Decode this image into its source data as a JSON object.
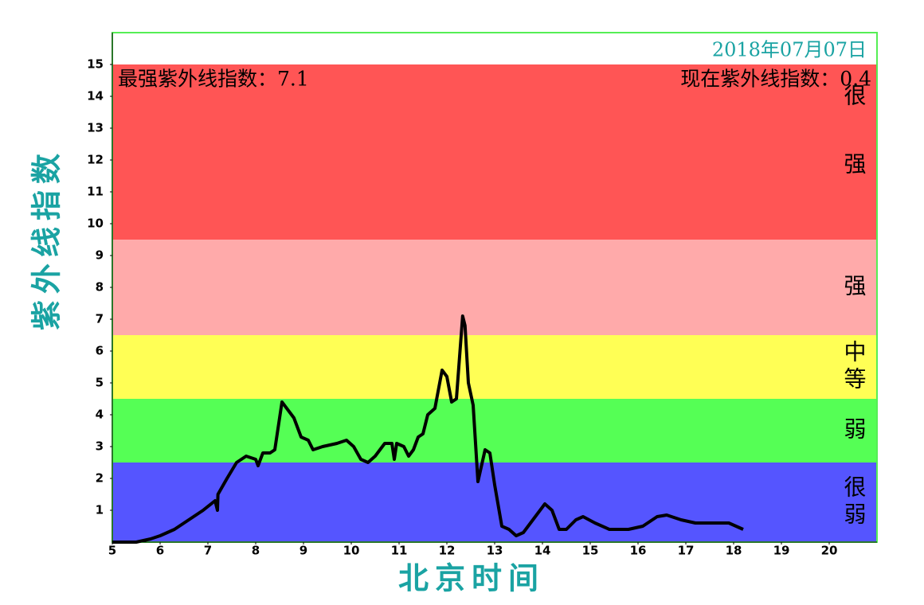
{
  "chart_data": {
    "type": "line",
    "date": "2018年07月07日",
    "max_text": "最强紫外线指数：7.1",
    "now_text": "现在紫外线指数：0.4",
    "ylabel": "紫外线指数",
    "xlabel": "北京时间",
    "xlim": [
      5,
      21
    ],
    "ylim": [
      0,
      16
    ],
    "xticks": [
      5,
      6,
      7,
      8,
      9,
      10,
      11,
      12,
      13,
      14,
      15,
      16,
      17,
      18,
      19,
      20
    ],
    "yticks": [
      1,
      2,
      3,
      4,
      5,
      6,
      7,
      8,
      9,
      10,
      11,
      12,
      13,
      14,
      15
    ],
    "bands": [
      {
        "from": 0,
        "to": 2.5,
        "color": "#5555ff",
        "label": "很弱"
      },
      {
        "from": 2.5,
        "to": 4.5,
        "color": "#55ff55",
        "label": "弱"
      },
      {
        "from": 4.5,
        "to": 6.5,
        "color": "#ffff55",
        "label": "中等"
      },
      {
        "from": 6.5,
        "to": 9.5,
        "color": "#ffaaaa",
        "label": "强"
      },
      {
        "from": 9.5,
        "to": 15,
        "color": "#ff5555",
        "label": "很强"
      }
    ],
    "x": [
      5,
      5.5,
      5.8,
      6,
      6.3,
      6.6,
      6.9,
      7.15,
      7.2,
      7.21,
      7.4,
      7.6,
      7.8,
      8.0,
      8.05,
      8.15,
      8.3,
      8.4,
      8.55,
      8.7,
      8.8,
      8.95,
      9.1,
      9.2,
      9.4,
      9.7,
      9.9,
      10.05,
      10.2,
      10.35,
      10.5,
      10.7,
      10.85,
      10.9,
      10.95,
      11.1,
      11.2,
      11.3,
      11.4,
      11.5,
      11.6,
      11.75,
      11.9,
      12.0,
      12.1,
      12.2,
      12.33,
      12.38,
      12.45,
      12.55,
      12.65,
      12.8,
      12.9,
      13.0,
      13.15,
      13.3,
      13.45,
      13.6,
      13.8,
      14.05,
      14.2,
      14.35,
      14.5,
      14.7,
      14.85,
      15.1,
      15.4,
      15.8,
      16.1,
      16.4,
      16.6,
      16.9,
      17.2,
      17.6,
      17.9,
      18.2
    ],
    "series": [
      {
        "color": "#000000",
        "values": [
          0,
          0,
          0.1,
          0.2,
          0.4,
          0.7,
          1.0,
          1.3,
          1.0,
          1.5,
          2.0,
          2.5,
          2.7,
          2.6,
          2.4,
          2.8,
          2.8,
          2.9,
          4.4,
          4.1,
          3.9,
          3.3,
          3.2,
          2.9,
          3.0,
          3.1,
          3.2,
          3.0,
          2.6,
          2.5,
          2.7,
          3.1,
          3.1,
          2.6,
          3.1,
          3.0,
          2.7,
          2.9,
          3.3,
          3.4,
          4.0,
          4.2,
          5.4,
          5.2,
          4.4,
          4.5,
          7.1,
          6.8,
          5.0,
          4.3,
          1.9,
          2.9,
          2.8,
          1.8,
          0.5,
          0.4,
          0.2,
          0.3,
          0.7,
          1.2,
          1.0,
          0.4,
          0.4,
          0.7,
          0.8,
          0.6,
          0.4,
          0.4,
          0.5,
          0.8,
          0.85,
          0.7,
          0.6,
          0.6,
          0.6,
          0.4
        ]
      }
    ]
  }
}
